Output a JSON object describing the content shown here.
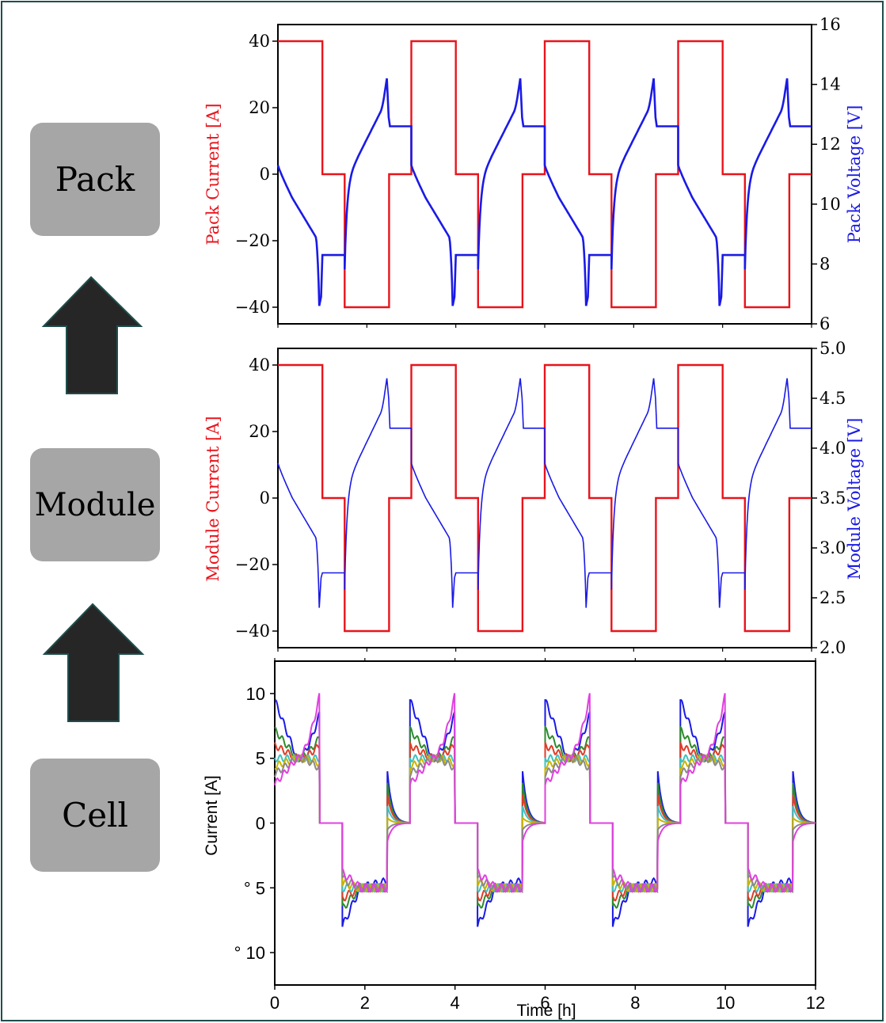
{
  "stages": {
    "pack": "Pack",
    "module": "Module",
    "cell": "Cell"
  },
  "colors": {
    "current": "#e8141c",
    "voltage": "#1a1ae6",
    "arrow": "#262626",
    "stage_box": "#a6a6a6",
    "border": "#1f4e4c"
  },
  "chart_data": [
    {
      "type": "line",
      "title": "",
      "xlabel": "",
      "ylabel": "Pack Current [A]",
      "y2label": "Pack Voltage [V]",
      "xlim": [
        0,
        12
      ],
      "ylim": [
        -45,
        45
      ],
      "y2lim": [
        6,
        16
      ],
      "x_ticks": [
        0,
        2,
        4,
        6,
        8,
        10,
        12
      ],
      "y_ticks": [
        40,
        20,
        0,
        -20,
        -40
      ],
      "y_tick_labels": [
        "40",
        "20",
        "0",
        "−20",
        "−40"
      ],
      "y2_ticks": [
        6,
        8,
        10,
        12,
        14,
        16
      ],
      "y2_tick_labels": [
        "6",
        "8",
        "10",
        "12",
        "14",
        "16"
      ],
      "current_profile": {
        "period_h": 3,
        "segments": [
          [
            0,
            1,
            40
          ],
          [
            1,
            1.5,
            0
          ],
          [
            1.5,
            2.5,
            -40
          ],
          [
            2.5,
            3,
            0
          ]
        ]
      },
      "voltage_profile": {
        "discharge_start": 11.3,
        "discharge_knee": 10.2,
        "discharge_low": 6.6,
        "rest_after_discharge": 8.3,
        "charge_start": 10.7,
        "charge_peak": 14.2,
        "rest_after_charge": 12.6
      }
    },
    {
      "type": "line",
      "title": "",
      "xlabel": "",
      "ylabel": "Module Current [A]",
      "y2label": "Module Voltage [V]",
      "xlim": [
        0,
        12
      ],
      "ylim": [
        -45,
        45
      ],
      "y2lim": [
        2.0,
        5.0
      ],
      "x_ticks": [
        0,
        2,
        4,
        6,
        8,
        10,
        12
      ],
      "y_ticks": [
        40,
        20,
        0,
        -20,
        -40
      ],
      "y_tick_labels": [
        "40",
        "20",
        "0",
        "−20",
        "−40"
      ],
      "y2_ticks": [
        2.0,
        2.5,
        3.0,
        3.5,
        4.0,
        4.5,
        5.0
      ],
      "y2_tick_labels": [
        "2.0",
        "2.5",
        "3.0",
        "3.5",
        "4.0",
        "4.5",
        "5.0"
      ],
      "current_profile": {
        "period_h": 3,
        "segments": [
          [
            0,
            1,
            40
          ],
          [
            1,
            1.5,
            0
          ],
          [
            1.5,
            2.5,
            -40
          ],
          [
            2.5,
            3,
            0
          ]
        ]
      },
      "voltage_profile": {
        "discharge_start": 3.85,
        "discharge_knee": 3.5,
        "discharge_low": 2.4,
        "rest_after_discharge": 2.75,
        "charge_start": 3.6,
        "charge_peak": 4.7,
        "rest_after_charge": 4.2
      }
    },
    {
      "type": "line",
      "title": "",
      "xlabel": "Time [h]",
      "ylabel": "Current [A]",
      "xlim": [
        0,
        12
      ],
      "ylim": [
        -12.5,
        12.5
      ],
      "x_ticks": [
        0,
        2,
        4,
        6,
        8,
        10,
        12
      ],
      "x_tick_labels": [
        "0",
        "2",
        "4",
        "6",
        "8",
        "10",
        "12"
      ],
      "y_ticks": [
        10,
        5,
        0,
        -5,
        -10
      ],
      "y_tick_labels": [
        "10",
        "5",
        "0",
        "° 5",
        "° 10"
      ],
      "series": [
        {
          "color": "#1a1ae6",
          "discharge_start": 9.5,
          "discharge_end": 8.4,
          "charge_start": -8.0,
          "charge_end": -4.5
        },
        {
          "color": "#2e8b2e",
          "discharge_start": 7.2,
          "discharge_end": 6.6,
          "charge_start": -6.6,
          "charge_end": -5.0
        },
        {
          "color": "#e03c28",
          "discharge_start": 6.0,
          "discharge_end": 6.0,
          "charge_start": -5.8,
          "charge_end": -5.0
        },
        {
          "color": "#40c0c0",
          "discharge_start": 5.0,
          "discharge_end": 5.0,
          "charge_start": -5.0,
          "charge_end": -5.0
        },
        {
          "color": "#c8b400",
          "discharge_start": 4.4,
          "discharge_end": 4.6,
          "charge_start": -4.6,
          "charge_end": -5.0
        },
        {
          "color": "#8a8a8a",
          "discharge_start": 3.8,
          "discharge_end": 4.2,
          "charge_start": -4.3,
          "charge_end": -5.0
        },
        {
          "color": "#e040e0",
          "discharge_start": 3.0,
          "discharge_end": 9.8,
          "charge_start": -3.8,
          "charge_end": -5.0
        }
      ]
    }
  ]
}
